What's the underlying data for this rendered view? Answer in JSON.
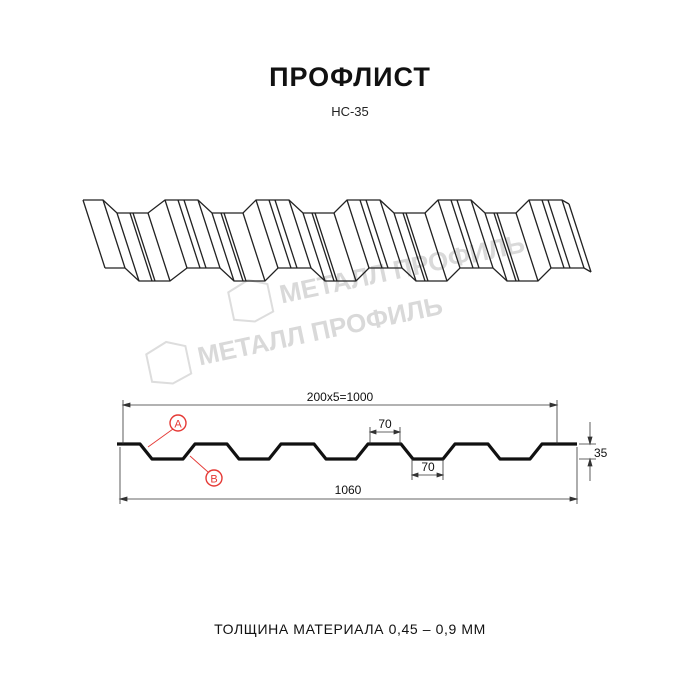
{
  "header": {
    "title": "ПРОФЛИСТ",
    "model": "НС-35"
  },
  "watermark": {
    "text": "МЕТАЛЛ ПРОФИЛЬ"
  },
  "section": {
    "pitch_label": "200x5=1000",
    "total_width_label": "1060",
    "height_label": "35",
    "top_width_label": "70",
    "bottom_width_label": "70",
    "marker_a": "A",
    "marker_b": "B"
  },
  "footer": {
    "thickness": "ТОЛЩИНА МАТЕРИАЛА 0,45 – 0,9 ММ"
  },
  "colors": {
    "profile": "#111111",
    "marker": "#e53935",
    "watermark": "#d9d9d9"
  }
}
